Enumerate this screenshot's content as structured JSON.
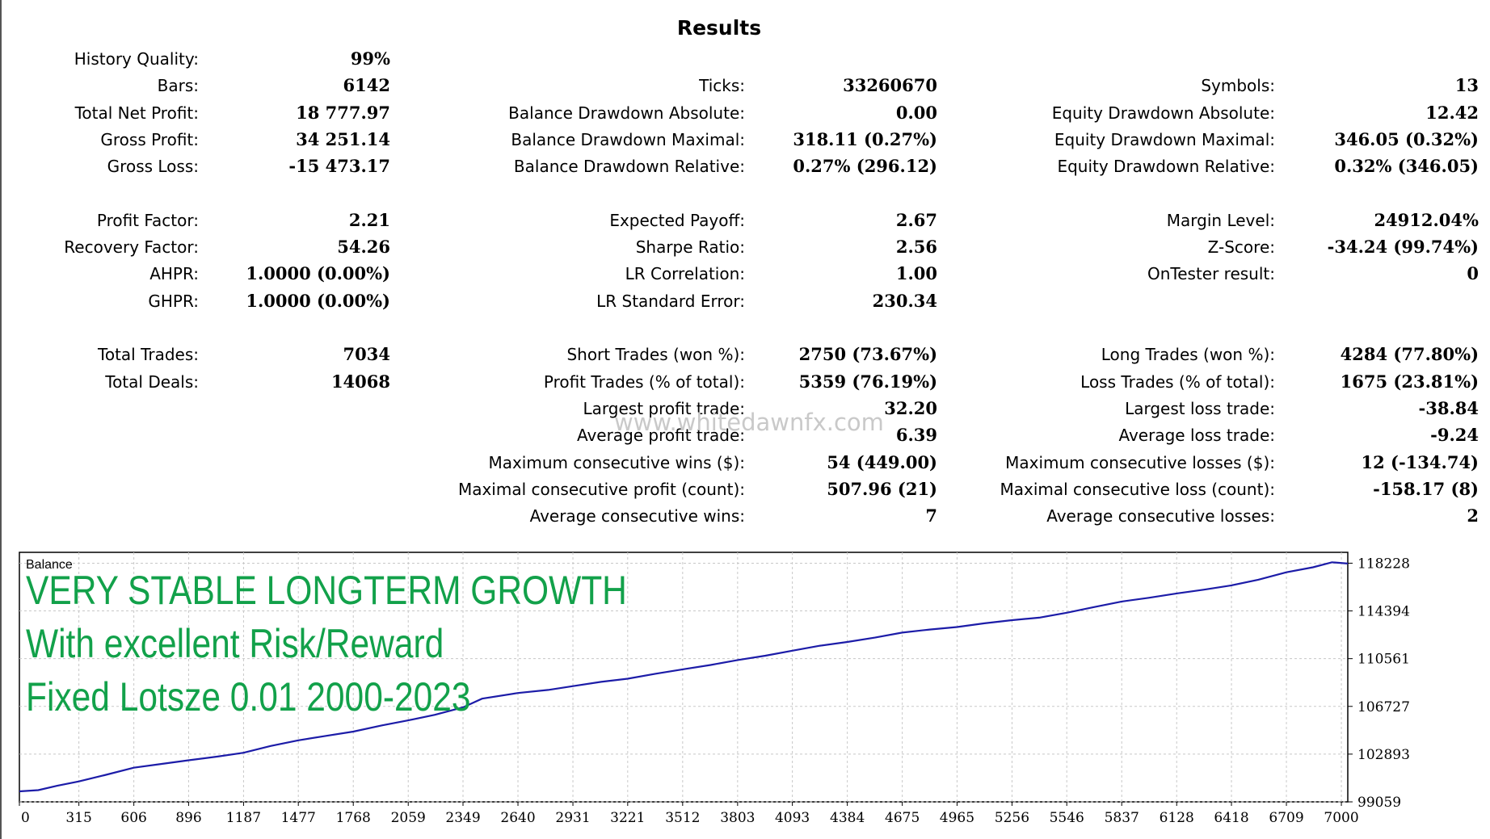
{
  "results_title": "Results",
  "watermark": "www.whitedawnfx.com",
  "stats": {
    "col1": [
      {
        "label": "History Quality:",
        "value": "99%",
        "row": 0
      },
      {
        "label": "Bars:",
        "value": "6142",
        "row": 1
      },
      {
        "label": "Total Net Profit:",
        "value": "18 777.97",
        "row": 2
      },
      {
        "label": "Gross Profit:",
        "value": "34 251.14",
        "row": 3
      },
      {
        "label": "Gross Loss:",
        "value": "-15 473.17",
        "row": 4
      },
      {
        "label": "Profit Factor:",
        "value": "2.21",
        "row": 6
      },
      {
        "label": "Recovery Factor:",
        "value": "54.26",
        "row": 7
      },
      {
        "label": "AHPR:",
        "value": "1.0000 (0.00%)",
        "row": 8
      },
      {
        "label": "GHPR:",
        "value": "1.0000 (0.00%)",
        "row": 9
      },
      {
        "label": "Total Trades:",
        "value": "7034",
        "row": 11
      },
      {
        "label": "Total Deals:",
        "value": "14068",
        "row": 12
      }
    ],
    "col2": [
      {
        "label": "Ticks:",
        "value": "33260670",
        "row": 1
      },
      {
        "label": "Balance Drawdown Absolute:",
        "value": "0.00",
        "row": 2
      },
      {
        "label": "Balance Drawdown Maximal:",
        "value": "318.11 (0.27%)",
        "row": 3
      },
      {
        "label": "Balance Drawdown Relative:",
        "value": "0.27% (296.12)",
        "row": 4
      },
      {
        "label": "Expected Payoff:",
        "value": "2.67",
        "row": 6
      },
      {
        "label": "Sharpe Ratio:",
        "value": "2.56",
        "row": 7
      },
      {
        "label": "LR Correlation:",
        "value": "1.00",
        "row": 8
      },
      {
        "label": "LR Standard Error:",
        "value": "230.34",
        "row": 9
      },
      {
        "label": "Short Trades (won %):",
        "value": "2750 (73.67%)",
        "row": 11
      },
      {
        "label": "Profit Trades (% of total):",
        "value": "5359 (76.19%)",
        "row": 12
      },
      {
        "label": "Largest profit trade:",
        "value": "32.20",
        "row": 13
      },
      {
        "label": "Average profit trade:",
        "value": "6.39",
        "row": 14
      },
      {
        "label": "Maximum consecutive wins ($):",
        "value": "54 (449.00)",
        "row": 15
      },
      {
        "label": "Maximal consecutive profit (count):",
        "value": "507.96 (21)",
        "row": 16
      },
      {
        "label": "Average consecutive wins:",
        "value": "7",
        "row": 17
      }
    ],
    "col3": [
      {
        "label": "Symbols:",
        "value": "13",
        "row": 1
      },
      {
        "label": "Equity Drawdown Absolute:",
        "value": "12.42",
        "row": 2
      },
      {
        "label": "Equity Drawdown Maximal:",
        "value": "346.05 (0.32%)",
        "row": 3
      },
      {
        "label": "Equity Drawdown Relative:",
        "value": "0.32% (346.05)",
        "row": 4
      },
      {
        "label": "Margin Level:",
        "value": "24912.04%",
        "row": 6
      },
      {
        "label": "Z-Score:",
        "value": "-34.24 (99.74%)",
        "row": 7
      },
      {
        "label": "OnTester result:",
        "value": "0",
        "row": 8
      },
      {
        "label": "Long Trades (won %):",
        "value": "4284 (77.80%)",
        "row": 11
      },
      {
        "label": "Loss Trades (% of total):",
        "value": "1675 (23.81%)",
        "row": 12
      },
      {
        "label": "Largest loss trade:",
        "value": "-38.84",
        "row": 13
      },
      {
        "label": "Average loss trade:",
        "value": "-9.24",
        "row": 14
      },
      {
        "label": "Maximum consecutive losses ($):",
        "value": "12 (-134.74)",
        "row": 15
      },
      {
        "label": "Maximal consecutive loss (count):",
        "value": "-158.17 (8)",
        "row": 16
      },
      {
        "label": "Average consecutive losses:",
        "value": "2",
        "row": 17
      }
    ]
  },
  "overlay_lines": [
    "VERY STABLE LONGTERM GROWTH",
    "With excellent Risk/Reward",
    "Fixed Lotsze 0.01 2000-2023"
  ],
  "colors": {
    "line": "#1c1ca8",
    "overlay": "#12a14a",
    "grid": "#c8c8c8"
  },
  "chart_data": {
    "type": "line",
    "title": "Balance",
    "xticks": [
      0,
      315,
      606,
      896,
      1187,
      1477,
      1768,
      2059,
      2349,
      2640,
      2931,
      3221,
      3512,
      3803,
      4093,
      4384,
      4675,
      4965,
      5256,
      5546,
      5837,
      6128,
      6418,
      6709,
      7000
    ],
    "yticks": [
      99059,
      102893,
      106727,
      110561,
      114394,
      118228
    ],
    "xlim": [
      0,
      7034
    ],
    "ylim": [
      99059,
      119100
    ],
    "grid": true,
    "series": [
      {
        "x": [
          0,
          100,
          200,
          315,
          450,
          606,
          750,
          896,
          1050,
          1187,
          1330,
          1477,
          1620,
          1768,
          1920,
          2059,
          2200,
          2349,
          2450,
          2640,
          2800,
          2931,
          3080,
          3221,
          3370,
          3512,
          3660,
          3803,
          3950,
          4093,
          4240,
          4384,
          4530,
          4675,
          4820,
          4965,
          5110,
          5256,
          5400,
          5546,
          5690,
          5837,
          5980,
          6128,
          6270,
          6418,
          6560,
          6709,
          6850,
          6950,
          7034
        ],
        "y": [
          99900,
          100000,
          100350,
          100700,
          101200,
          101800,
          102100,
          102400,
          102700,
          103000,
          103550,
          104000,
          104350,
          104700,
          105200,
          105600,
          106050,
          106650,
          107350,
          107800,
          108050,
          108350,
          108700,
          108950,
          109350,
          109700,
          110050,
          110450,
          110800,
          111200,
          111600,
          111900,
          112250,
          112650,
          112900,
          113100,
          113400,
          113650,
          113850,
          114250,
          114700,
          115150,
          115450,
          115800,
          116100,
          116450,
          116900,
          117500,
          117900,
          118300,
          118200
        ]
      }
    ]
  }
}
